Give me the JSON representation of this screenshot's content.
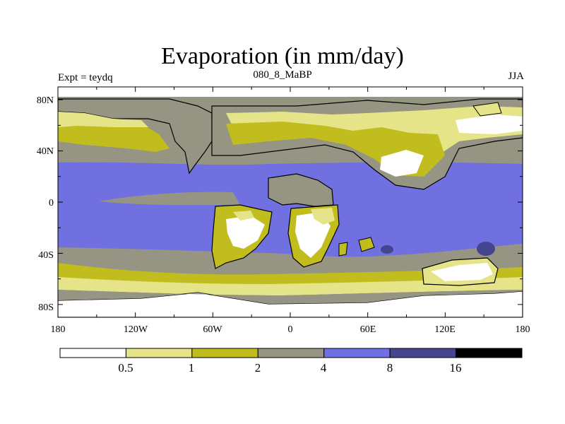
{
  "title": "Evaporation (in mm/day)",
  "left_label": "Expt = teydq",
  "center_label": "080_8_MaBP",
  "right_label": "JJA",
  "y_ticks": [
    "80N",
    "40N",
    "0",
    "40S",
    "80S"
  ],
  "x_ticks": [
    "180",
    "120W",
    "60W",
    "0",
    "60E",
    "120E",
    "180"
  ],
  "colorbar": {
    "labels": [
      "0.5",
      "1",
      "2",
      "4",
      "8",
      "16"
    ],
    "colors": [
      "#ffffff",
      "#e6e488",
      "#c2bd1e",
      "#969482",
      "#7070e0",
      "#464690",
      "#000000"
    ]
  },
  "palette": {
    "ocean_high": "#7070e0",
    "ocean_low": "#969482",
    "land_low": "#e6e488",
    "land_mid": "#c2bd1e",
    "desert": "#ffffff",
    "max": "#464690"
  }
}
